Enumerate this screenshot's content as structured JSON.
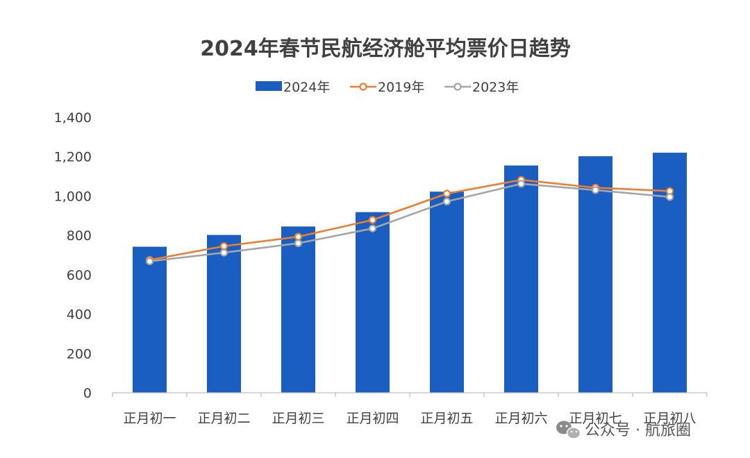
{
  "chart_data": {
    "type": "bar",
    "title": "2024年春节民航经济舱平均票价日趋势",
    "categories": [
      "正月初一",
      "正月初二",
      "正月初三",
      "正月初四",
      "正月初五",
      "正月初六",
      "正月初七",
      "正月初八"
    ],
    "series": [
      {
        "name": "2024年",
        "type": "bar",
        "color": "#1B5EC2",
        "values": [
          742,
          802,
          845,
          918,
          1022,
          1155,
          1202,
          1220
        ]
      },
      {
        "name": "2019年",
        "type": "line",
        "color": "#ED7D31",
        "values": [
          675,
          745,
          793,
          878,
          1012,
          1082,
          1042,
          1025
        ]
      },
      {
        "name": "2023年",
        "type": "line",
        "color": "#A5A5A5",
        "values": [
          668,
          712,
          760,
          835,
          972,
          1062,
          1030,
          995
        ]
      }
    ],
    "yticks": [
      "0",
      "200",
      "400",
      "600",
      "800",
      "1,000",
      "1,200",
      "1,400"
    ],
    "ylim": [
      0,
      1400
    ],
    "grid": false,
    "legend_position": "top"
  },
  "watermark": {
    "icon": "wechat-icon",
    "text": "公众号 · 航旅圈"
  }
}
